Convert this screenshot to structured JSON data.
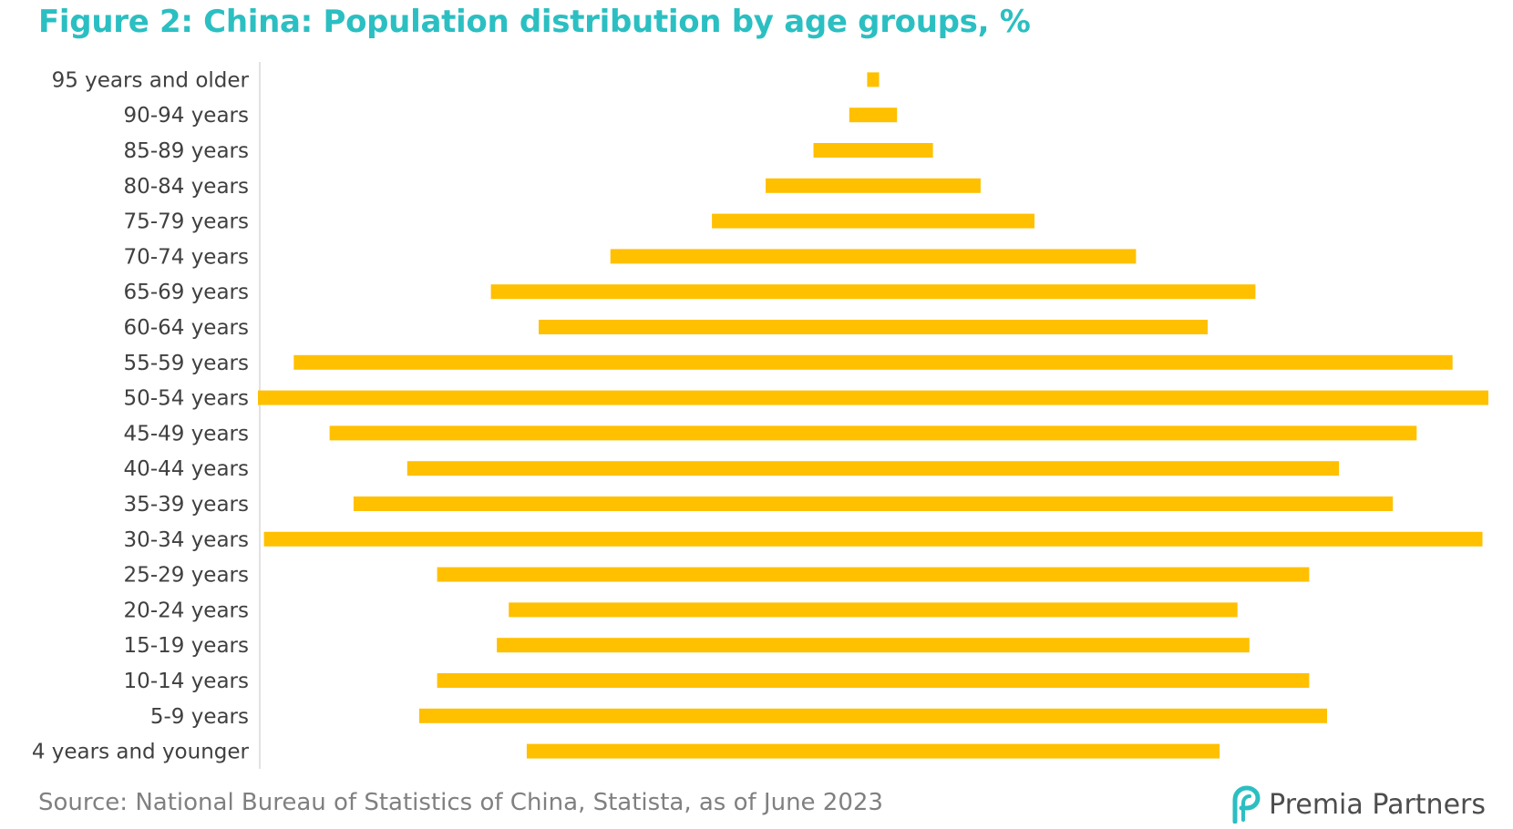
{
  "colors": {
    "title": "#2bbfc2",
    "bar": "#ffc000",
    "axis": "#d9d9d9",
    "label": "#404040",
    "source": "#808080",
    "logo_accent": "#2bbfc2"
  },
  "logo": {
    "brand": "Premia",
    "brand_rest": "Partners",
    "icon": "premia-logo-icon"
  },
  "chart_data": {
    "type": "bar",
    "orientation": "horizontal",
    "subtype": "population-pyramid (combined, centered)",
    "title": "Figure 2: China: Population distribution by age groups, %",
    "source": "Source: National Bureau of Statistics of China, Statista, as of June 2023",
    "categories": [
      "95 years and older",
      "90-94 years",
      "85-89 years",
      "80-84 years",
      "75-79 years",
      "70-74 years",
      "65-69 years",
      "60-64 years",
      "55-59 years",
      "50-54 years",
      "45-49 years",
      "40-44 years",
      "35-39 years",
      "30-34 years",
      "25-29 years",
      "20-24 years",
      "15-19 years",
      "10-14 years",
      "5-9 years",
      "4 years and younger"
    ],
    "values": [
      0.1,
      0.4,
      1.0,
      1.8,
      2.7,
      4.4,
      6.4,
      5.6,
      9.7,
      10.3,
      9.1,
      7.8,
      8.7,
      10.2,
      7.3,
      6.1,
      6.3,
      7.3,
      7.6,
      5.8
    ],
    "grid": false,
    "legend": "none"
  }
}
